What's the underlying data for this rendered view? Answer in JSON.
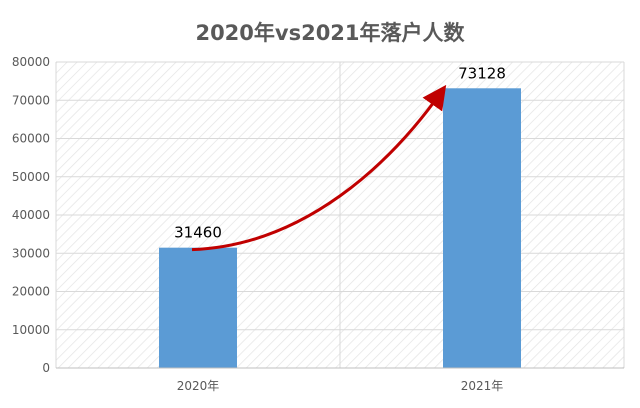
{
  "chart_data": {
    "type": "bar",
    "title": "2020年vs2021年落户人数",
    "xlabel": "",
    "ylabel": "",
    "categories": [
      "2020年",
      "2021年"
    ],
    "values": [
      31460,
      73128
    ],
    "data_labels": [
      "31460",
      "73128"
    ],
    "ylim": [
      0,
      80000
    ],
    "yticks": [
      0,
      10000,
      20000,
      30000,
      40000,
      50000,
      60000,
      70000,
      80000
    ],
    "grid": true,
    "legend": "none",
    "annotation": "curved red arrow from 2020年 bar top to 2021年 bar top",
    "colors": {
      "bar": "#5B9BD5",
      "arrow": "#C00000",
      "grid": "#D9D9D9",
      "hatch": "#E3E3E3",
      "text": "#595959"
    }
  }
}
